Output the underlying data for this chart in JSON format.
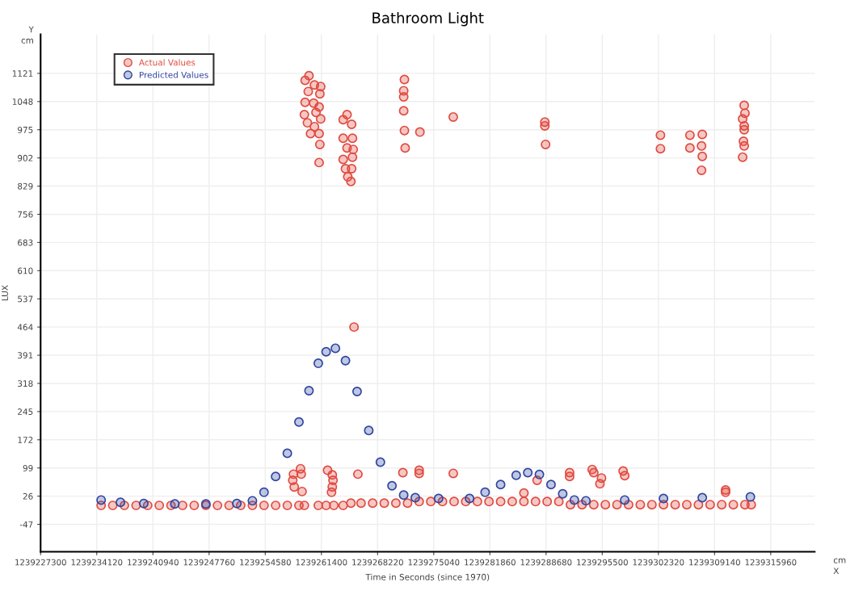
{
  "chart_data": {
    "type": "scatter",
    "title": "Bathroom Light",
    "xlabel": "Time in Seconds (since 1970)",
    "ylabel": "LUX",
    "annotations": [
      "Y",
      "cm",
      "cm",
      "X"
    ],
    "xlim": [
      1239227300,
      1239321300
    ],
    "ylim": [
      -118,
      1222
    ],
    "xticks": [
      1239227300,
      1239234120,
      1239240940,
      1239247760,
      1239254580,
      1239261400,
      1239268220,
      1239275040,
      1239281860,
      1239288680,
      1239295500,
      1239302320,
      1239309140,
      1239315960
    ],
    "yticks": [
      -47,
      26,
      99,
      172,
      245,
      318,
      391,
      464,
      537,
      610,
      683,
      756,
      829,
      902,
      975,
      1048,
      1121
    ],
    "grid": true,
    "legend": "top left",
    "marker": "circle",
    "series": [
      {
        "name": "Actual Values",
        "color": "#e04a3f",
        "x": [
          1239259890,
          1239259420,
          1239260550,
          1239261310,
          1239259800,
          1239261210,
          1239259420,
          1239260460,
          1239261120,
          1239259330,
          1239260740,
          1239261310,
          1239259700,
          1239260550,
          1239260080,
          1239261120,
          1239261210,
          1239261120,
          1239264510,
          1239264040,
          1239265070,
          1239264040,
          1239265170,
          1239264510,
          1239265260,
          1239264040,
          1239265170,
          1239264320,
          1239265070,
          1239264600,
          1239264980,
          1239271480,
          1239271390,
          1239271390,
          1239271390,
          1239271480,
          1239271570,
          1239273360,
          1239277410,
          1239288530,
          1239288530,
          1239288620,
          1239302570,
          1239302570,
          1239306150,
          1239306150,
          1239307650,
          1239307560,
          1239307650,
          1239307560,
          1239312740,
          1239312830,
          1239312550,
          1239312740,
          1239312740,
          1239312650,
          1239312740,
          1239312550,
          1239258010,
          1239257920,
          1239258100,
          1239258860,
          1239258950,
          1239259050,
          1239262150,
          1239262720,
          1239262810,
          1239262720,
          1239262630,
          1239265360,
          1239265830,
          1239271290,
          1239273270,
          1239273270,
          1239277410,
          1239285990,
          1239287590,
          1239291540,
          1239291540,
          1239294280,
          1239294470,
          1239295410,
          1239295220,
          1239298040,
          1239298230,
          1239310480,
          1239310480,
          1239234650,
          1239236060,
          1239237470,
          1239238890,
          1239240300,
          1239241710,
          1239243130,
          1239244540,
          1239245950,
          1239247370,
          1239248780,
          1239250190,
          1239251600,
          1239253020,
          1239254430,
          1239255840,
          1239257260,
          1239258670,
          1239259330,
          1239261020,
          1239261970,
          1239262910,
          1239264040,
          1239264980,
          1239266210,
          1239267620,
          1239269030,
          1239270440,
          1239271860,
          1239273270,
          1239274680,
          1239276100,
          1239277510,
          1239278920,
          1239280340,
          1239281750,
          1239283160,
          1239284570,
          1239285990,
          1239287400,
          1239288810,
          1239290230,
          1239291640,
          1239293050,
          1239294470,
          1239295880,
          1239297290,
          1239298700,
          1239300120,
          1239301530,
          1239302940,
          1239304360,
          1239305770,
          1239307180,
          1239308600,
          1239310010,
          1239311420,
          1239312830,
          1239313590
        ],
        "values": [
          1115,
          1103,
          1091,
          1087,
          1074,
          1068,
          1046,
          1044,
          1034,
          1014,
          1020,
          1003,
          993,
          983,
          965,
          965,
          937,
          890,
          1014,
          1001,
          989,
          953,
          953,
          928,
          924,
          898,
          904,
          874,
          874,
          853,
          841,
          1105,
          1076,
          1060,
          1024,
          973,
          928,
          969,
          1008,
          995,
          985,
          937,
          961,
          926,
          961,
          928,
          963,
          933,
          906,
          870,
          1038,
          1018,
          1003,
          985,
          975,
          945,
          933,
          904,
          83,
          67,
          50,
          97,
          83,
          38,
          93,
          81,
          67,
          50,
          36,
          464,
          83,
          87,
          93,
          85,
          85,
          34,
          67,
          87,
          77,
          95,
          87,
          73,
          58,
          91,
          79,
          42,
          36,
          2,
          2,
          2,
          2,
          2,
          2,
          2,
          2,
          2,
          2,
          2,
          2,
          2,
          2,
          2,
          2,
          2,
          2,
          2,
          2,
          2,
          2,
          2,
          8,
          8,
          8,
          8,
          8,
          8,
          12,
          12,
          12,
          12,
          12,
          12,
          12,
          12,
          12,
          12,
          12,
          12,
          12,
          4,
          4,
          4,
          4,
          4,
          4,
          4,
          4,
          4,
          4,
          4,
          4,
          4,
          4,
          4,
          4,
          4
        ]
      },
      {
        "name": "Predicted Values",
        "color": "#2f45a0",
        "x": [
          1239234650,
          1239237000,
          1239239830,
          1239243600,
          1239247370,
          1239251130,
          1239253020,
          1239254430,
          1239255840,
          1239257260,
          1239258670,
          1239259890,
          1239261020,
          1239261970,
          1239263100,
          1239264320,
          1239265730,
          1239267150,
          1239268560,
          1239269970,
          1239271390,
          1239272800,
          1239275630,
          1239279390,
          1239281280,
          1239283160,
          1239285050,
          1239286460,
          1239287870,
          1239289280,
          1239290700,
          1239292110,
          1239293520,
          1239298230,
          1239302940,
          1239307650,
          1239313490
        ],
        "values": [
          16,
          10,
          7,
          6,
          6,
          7,
          14,
          36,
          77,
          137,
          218,
          299,
          370,
          400,
          409,
          377,
          297,
          196,
          114,
          53,
          29,
          22,
          20,
          20,
          36,
          56,
          80,
          87,
          82,
          56,
          32,
          16,
          14,
          16,
          20,
          22,
          24
        ]
      }
    ]
  }
}
